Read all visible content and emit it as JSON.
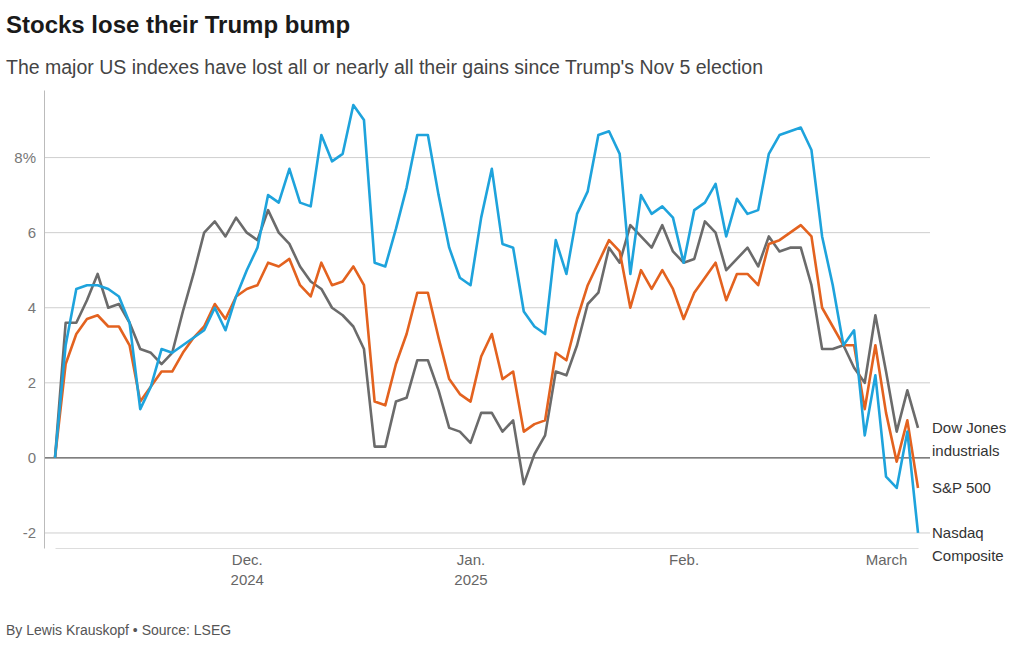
{
  "chart_data": {
    "type": "line",
    "title": "Stocks lose their Trump bump",
    "subtitle": "The major US indexes have lost all or nearly all their gains since Trump's Nov 5 election",
    "source": "By Lewis Krauskopf • Source: LSEG",
    "categories": [
      null,
      null,
      null,
      null,
      null,
      null,
      null,
      null,
      null,
      null,
      null,
      null,
      null,
      null,
      null,
      null,
      null,
      null,
      "Dec.\n2024",
      null,
      null,
      null,
      null,
      null,
      null,
      null,
      null,
      null,
      null,
      null,
      null,
      null,
      null,
      null,
      null,
      null,
      null,
      null,
      null,
      "Jan.\n2025",
      null,
      null,
      null,
      null,
      null,
      null,
      null,
      null,
      null,
      null,
      null,
      null,
      null,
      null,
      null,
      null,
      null,
      null,
      null,
      "Feb.",
      null,
      null,
      null,
      null,
      null,
      null,
      null,
      null,
      null,
      null,
      null,
      null,
      null,
      null,
      null,
      null,
      null,
      null,
      "March",
      null,
      null,
      null
    ],
    "ylim": [
      -2.4,
      9.8
    ],
    "yticks": [
      -2,
      0,
      2,
      4,
      6,
      {
        "value": 8,
        "label": "8%"
      }
    ],
    "grid": true,
    "series": [
      {
        "name": "Dow Jones\nindustrials",
        "color": "#6b6b6b",
        "values": [
          0,
          3.6,
          3.6,
          4.2,
          4.9,
          4.0,
          4.1,
          3.6,
          2.9,
          2.8,
          2.5,
          2.8,
          3.9,
          4.9,
          6.0,
          6.3,
          5.9,
          6.4,
          6.0,
          5.8,
          6.6,
          6.0,
          5.7,
          5.1,
          4.7,
          4.5,
          4.0,
          3.8,
          3.5,
          2.9,
          0.3,
          0.3,
          1.5,
          1.6,
          2.6,
          2.6,
          1.8,
          0.8,
          0.7,
          0.4,
          1.2,
          1.2,
          0.7,
          1.0,
          -0.7,
          0.1,
          0.6,
          2.3,
          2.2,
          3.0,
          4.1,
          4.4,
          5.6,
          5.2,
          6.2,
          5.9,
          5.6,
          6.2,
          5.5,
          5.2,
          5.3,
          6.3,
          6.0,
          5.0,
          5.3,
          5.6,
          5.1,
          5.9,
          5.5,
          5.6,
          5.6,
          4.6,
          2.9,
          2.9,
          3.0,
          2.4,
          2.0,
          3.8,
          2.3,
          0.7,
          1.8,
          0.8
        ]
      },
      {
        "name": "S&P 500",
        "color": "#e3621f",
        "values": [
          0,
          2.5,
          3.3,
          3.7,
          3.8,
          3.5,
          3.5,
          3.0,
          1.5,
          1.9,
          2.3,
          2.3,
          2.8,
          3.2,
          3.5,
          4.1,
          3.7,
          4.3,
          4.5,
          4.6,
          5.2,
          5.1,
          5.3,
          4.6,
          4.3,
          5.2,
          4.6,
          4.7,
          5.1,
          4.6,
          1.5,
          1.4,
          2.5,
          3.3,
          4.4,
          4.4,
          3.2,
          2.1,
          1.7,
          1.5,
          2.7,
          3.3,
          2.1,
          2.3,
          0.7,
          0.9,
          1.0,
          2.8,
          2.6,
          3.7,
          4.6,
          5.2,
          5.8,
          5.5,
          4.0,
          5.0,
          4.5,
          5.0,
          4.5,
          3.7,
          4.4,
          4.8,
          5.2,
          4.2,
          4.9,
          4.9,
          4.6,
          5.7,
          5.8,
          6.0,
          6.2,
          5.9,
          4.0,
          3.5,
          3.0,
          3.0,
          1.3,
          3.0,
          1.2,
          -0.1,
          1.0,
          -0.8
        ]
      },
      {
        "name": "Nasdaq\nComposite",
        "color": "#1ea3dc",
        "values": [
          0,
          3.0,
          4.5,
          4.6,
          4.6,
          4.5,
          4.3,
          3.6,
          1.3,
          1.9,
          2.9,
          2.8,
          3.0,
          3.2,
          3.4,
          4.0,
          3.4,
          4.3,
          5.0,
          5.6,
          7.0,
          6.8,
          7.7,
          6.8,
          6.7,
          8.6,
          7.9,
          8.1,
          9.4,
          9.0,
          5.2,
          5.1,
          6.1,
          7.2,
          8.6,
          8.6,
          7.0,
          5.6,
          4.8,
          4.6,
          6.4,
          7.7,
          5.7,
          5.6,
          3.9,
          3.5,
          3.3,
          5.8,
          4.9,
          6.5,
          7.1,
          8.6,
          8.7,
          8.1,
          4.9,
          7.0,
          6.5,
          6.7,
          6.4,
          5.2,
          6.6,
          6.8,
          7.3,
          5.9,
          6.9,
          6.5,
          6.6,
          8.1,
          8.6,
          8.7,
          8.8,
          8.2,
          5.9,
          4.6,
          3.0,
          3.4,
          0.6,
          2.2,
          -0.5,
          -0.8,
          0.7,
          -2.0
        ]
      }
    ]
  }
}
